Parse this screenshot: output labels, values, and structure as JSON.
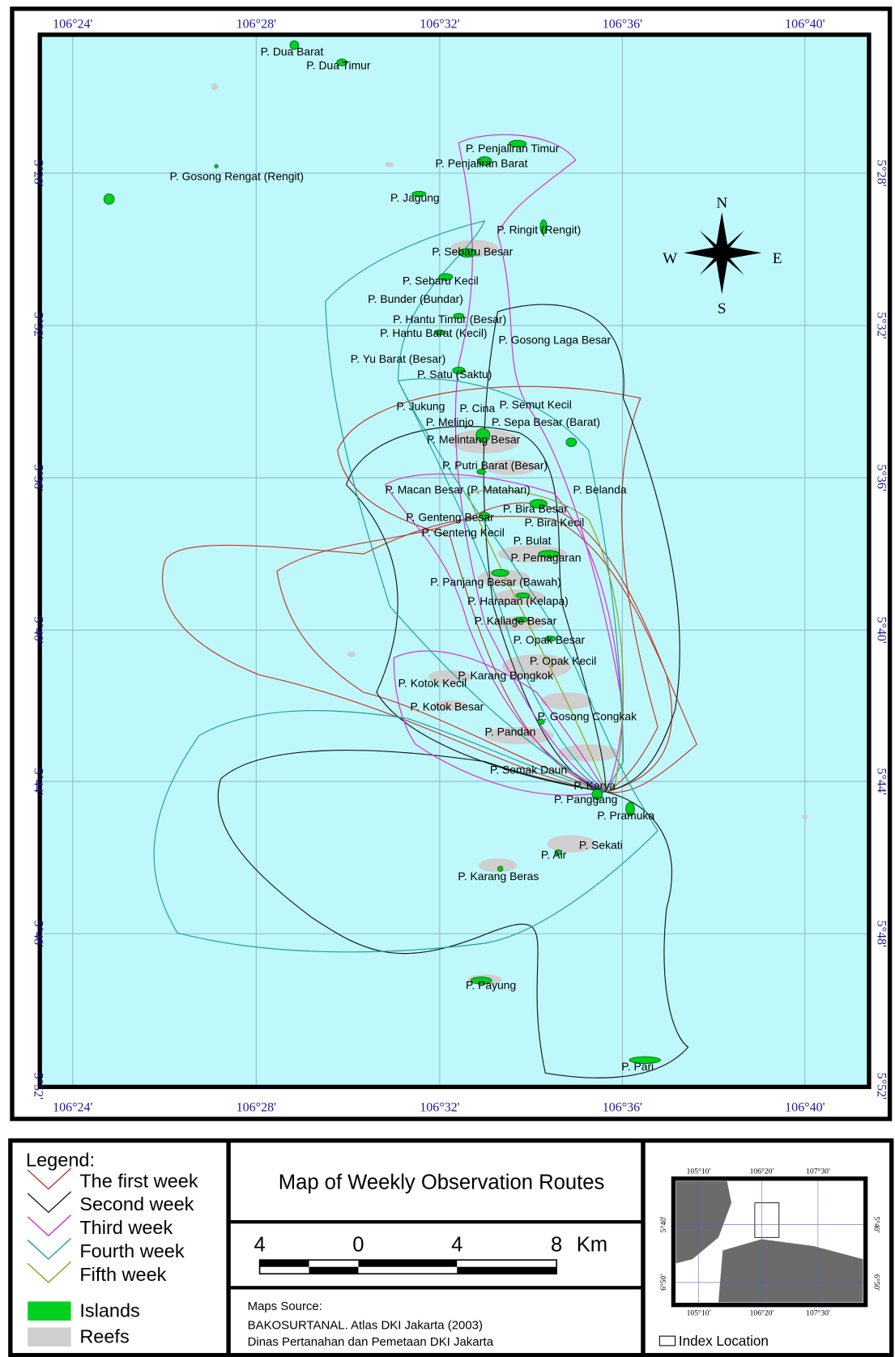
{
  "map": {
    "lon_labels": [
      "106°24'",
      "106°28'",
      "106°32'",
      "106°36'",
      "106°40'"
    ],
    "lat_labels": [
      "5°28'",
      "5°32'",
      "5°36'",
      "5°40'",
      "5°44'",
      "5°48'",
      "5°52'"
    ],
    "compass": {
      "n": "N",
      "e": "E",
      "s": "S",
      "w": "W"
    },
    "islands": [
      "P. Dua Barat",
      "P. Dua Timur",
      "P. Penjaliran Timur",
      "P. Penjaliran Barat",
      "P. Gosong Rengat (Rengit)",
      "P. Jagung",
      "P. Ringit (Rengit)",
      "P. Sebaru Besar",
      "P. Sebaru Kecil",
      "P. Bunder (Bundar)",
      "P. Hantu Timur (Besar)",
      "P. Hantu Barat (Kecil)",
      "P. Gosong Laga Besar",
      "P. Yu Barat (Besar)",
      "P. Satu (Saktu)",
      "P. Jukung",
      "P. Cina",
      "P. Semut Kecil",
      "P. Melinjo",
      "P. Sepa Besar (Barat)",
      "P. Melintang Besar",
      "P. Putri Barat (Besar)",
      "P. Macan Besar (P. Matahari)",
      "P. Belanda",
      "P. Bira Besar",
      "P. Genteng Besar",
      "P. Bira Kecil",
      "P. Genteng Kecil",
      "P. Bulat",
      "P. Pemagaran",
      "P. Panjang Besar (Bawah)",
      "P. Harapan (Kelapa)",
      "P. Kaliage Besar",
      "P. Opak Besar",
      "P. Opak Kecil",
      "P. Karang Bongkok",
      "P. Kotok Kecil",
      "P. Kotok Besar",
      "P. Gosong Congkak",
      "P. Pandan",
      "P. Semak Daun",
      "P. Karya",
      "P. Panggang",
      "P. Pramuka",
      "P. Sekati",
      "P. Air",
      "P. Karang Beras",
      "P. Payung",
      "P. Pari"
    ]
  },
  "legend": {
    "title": "Legend:",
    "items": [
      {
        "label": "The first week",
        "color": "#c0392b"
      },
      {
        "label": "Second week",
        "color": "#1a1a1a"
      },
      {
        "label": "Third week",
        "color": "#d62ad6"
      },
      {
        "label": "Fourth week",
        "color": "#1f9e9e"
      },
      {
        "label": "Fifth week",
        "color": "#9a9a1a"
      }
    ],
    "islands": "Islands",
    "reefs": "Reefs"
  },
  "title": "Map of Weekly Observation Routes",
  "scale": {
    "labels": [
      "4",
      "0",
      "4",
      "8"
    ],
    "unit": "Km"
  },
  "source": {
    "heading": "Maps Source:",
    "lines": [
      "BAKOSURTANAL. Atlas DKI Jakarta (2003)",
      "Dinas Pertanahan dan Pemetaan DKI Jakarta"
    ]
  },
  "index": {
    "lon_labels": [
      "105°10'",
      "106°20'",
      "107°30'"
    ],
    "lat_labels": [
      "5°40'",
      "6°50'"
    ],
    "caption": "Index Location"
  }
}
